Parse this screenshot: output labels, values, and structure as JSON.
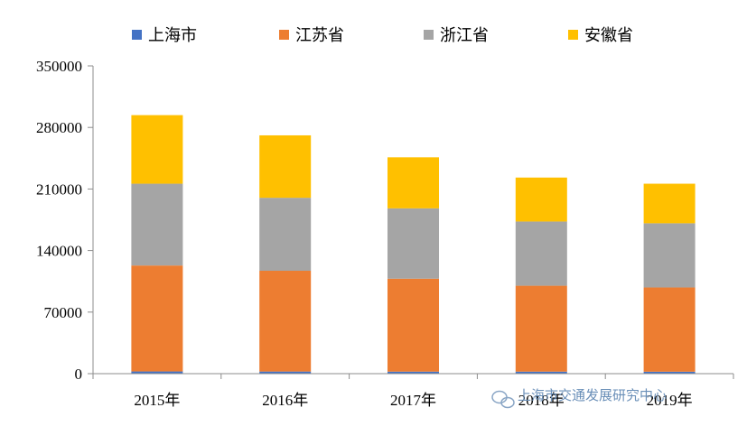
{
  "chart_data": {
    "type": "bar",
    "stacked": true,
    "categories": [
      "2015年",
      "2016年",
      "2017年",
      "2018年",
      "2019年"
    ],
    "series": [
      {
        "name": "上海市",
        "color": "#4472C4",
        "values": [
          2500,
          2400,
          2300,
          2300,
          2200
        ]
      },
      {
        "name": "江苏省",
        "color": "#ED7D31",
        "values": [
          120500,
          114600,
          105700,
          97700,
          95800
        ]
      },
      {
        "name": "浙江省",
        "color": "#A5A5A5",
        "values": [
          93000,
          83000,
          80000,
          73000,
          73000
        ]
      },
      {
        "name": "安徽省",
        "color": "#FFC000",
        "values": [
          78000,
          71000,
          58000,
          50000,
          45000
        ]
      }
    ],
    "ylim": [
      0,
      350000
    ],
    "yticks": [
      0,
      70000,
      140000,
      210000,
      280000,
      350000
    ],
    "legend_position": "top",
    "grid": false
  },
  "watermark": "上海市交通发展研究中心"
}
